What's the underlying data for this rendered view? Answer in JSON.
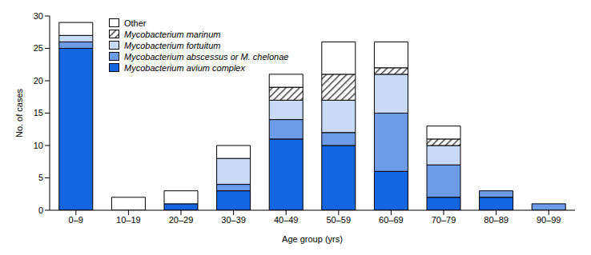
{
  "chart_data": {
    "type": "bar",
    "stacked": true,
    "grid": false,
    "legend": "top-left",
    "x_label": "Age group (yrs)",
    "y_label": "No. of cases",
    "categories": [
      "0–9",
      "10–19",
      "20–29",
      "30–39",
      "40–49",
      "50–59",
      "60–69",
      "70–79",
      "80–89",
      "90–99"
    ],
    "ylim": [
      0,
      30
    ],
    "yticks": [
      0,
      5,
      10,
      15,
      20,
      25,
      30
    ],
    "series": [
      {
        "name": "Mycobacterium avium complex",
        "color": "#1565e0",
        "values": [
          25,
          0,
          1,
          3,
          11,
          10,
          6,
          2,
          2,
          0
        ]
      },
      {
        "name": "Mycobacterium abscessus or M. chelonae",
        "color": "#6d9be6",
        "values": [
          1,
          0,
          0,
          1,
          3,
          2,
          9,
          5,
          1,
          1
        ]
      },
      {
        "name": "Mycobacterium fortuitum",
        "color": "#c9daf6",
        "values": [
          1,
          0,
          0,
          4,
          3,
          5,
          6,
          3,
          0,
          0
        ]
      },
      {
        "name": "Mycobacterium marinum",
        "color": "#444444",
        "values": [
          0,
          0,
          0,
          0,
          2,
          4,
          1,
          1,
          0,
          0
        ]
      },
      {
        "name": "Other",
        "color": "#ffffff",
        "values": [
          2,
          2,
          2,
          2,
          2,
          5,
          4,
          2,
          0,
          0
        ]
      }
    ]
  }
}
